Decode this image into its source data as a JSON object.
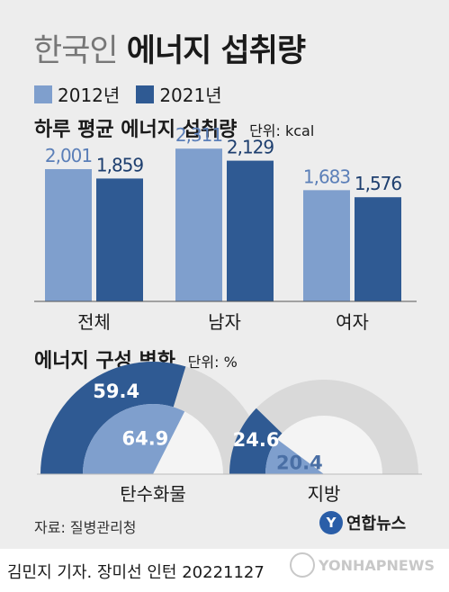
{
  "title_light": "한국인",
  "title_bold": "에너지 섭취량",
  "legend": [
    {
      "name": "2012년",
      "color": "#7f9fcd"
    },
    {
      "name": "2021년",
      "color": "#2f5a93"
    }
  ],
  "chart_data": [
    {
      "type": "bar",
      "title": "하루 평균 에너지 섭취량",
      "unit": "단위: kcal",
      "categories": [
        "전체",
        "남자",
        "여자"
      ],
      "series": [
        {
          "name": "2012년",
          "values": [
            2001,
            2311,
            1683
          ],
          "labels": [
            "2,001",
            "2,311",
            "1,683"
          ]
        },
        {
          "name": "2021년",
          "values": [
            1859,
            2129,
            1576
          ],
          "labels": [
            "1,859",
            "2,129",
            "1,576"
          ]
        }
      ],
      "ylim": [
        0,
        2450
      ]
    },
    {
      "type": "pie",
      "title": "에너지 구성 변화",
      "unit": "단위: %",
      "gauges": [
        {
          "label": "탄수화물",
          "outer": 59.4,
          "inner": 64.9
        },
        {
          "label": "지방",
          "outer": 24.6,
          "inner": 20.4
        }
      ]
    }
  ],
  "colors": {
    "y2012": "#7f9fcd",
    "y2021": "#2f5a93",
    "track": "#d9d9d9",
    "panel": "#ededed"
  },
  "source": "자료: 질병관리청",
  "logo": {
    "mark": "Y",
    "text": "연합뉴스"
  },
  "footer": "김민지 기자. 장미선 인턴 20221127",
  "watermark": "YONHAPNEWS"
}
